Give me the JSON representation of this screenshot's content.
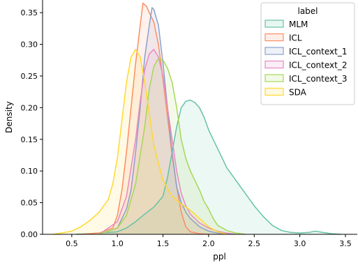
{
  "chart_data": {
    "type": "area",
    "title": "",
    "xlabel": "ppl",
    "ylabel": "Density",
    "xlim": [
      0.18,
      3.63
    ],
    "ylim": [
      0.0,
      0.37
    ],
    "xticks": [
      0.5,
      1.0,
      1.5,
      2.0,
      2.5,
      3.0,
      3.5
    ],
    "yticks": [
      0.0,
      0.05,
      0.1,
      0.15,
      0.2,
      0.25,
      0.3,
      0.35
    ],
    "xtick_labels": [
      "0.5",
      "1.0",
      "1.5",
      "2.0",
      "2.5",
      "3.0",
      "3.5"
    ],
    "ytick_labels": [
      "0.00",
      "0.05",
      "0.10",
      "0.15",
      "0.20",
      "0.25",
      "0.30",
      "0.35"
    ],
    "grid": false,
    "legend": {
      "title": "label",
      "placement": "top-right"
    },
    "series": [
      {
        "name": "MLM",
        "color": "#66c2a5",
        "x": [
          0.55,
          0.8,
          1.0,
          1.1,
          1.2,
          1.3,
          1.4,
          1.5,
          1.55,
          1.6,
          1.65,
          1.7,
          1.75,
          1.8,
          1.85,
          1.9,
          1.95,
          2.0,
          2.1,
          2.2,
          2.3,
          2.4,
          2.5,
          2.6,
          2.7,
          2.8,
          2.9,
          3.0,
          3.1,
          3.17,
          3.25,
          3.35,
          3.45
        ],
        "y": [
          0.0,
          0.002,
          0.004,
          0.01,
          0.02,
          0.032,
          0.043,
          0.06,
          0.09,
          0.13,
          0.17,
          0.2,
          0.21,
          0.212,
          0.208,
          0.2,
          0.185,
          0.165,
          0.135,
          0.105,
          0.085,
          0.065,
          0.045,
          0.028,
          0.014,
          0.006,
          0.003,
          0.002,
          0.003,
          0.005,
          0.003,
          0.001,
          0.0
        ]
      },
      {
        "name": "ICL",
        "color": "#fc8d62",
        "x": [
          0.6,
          0.8,
          0.95,
          1.0,
          1.05,
          1.1,
          1.15,
          1.2,
          1.25,
          1.28,
          1.32,
          1.35,
          1.4,
          1.45,
          1.5,
          1.55,
          1.6,
          1.65,
          1.7,
          1.75,
          1.8,
          1.9,
          2.0
        ],
        "y": [
          0.0,
          0.002,
          0.01,
          0.03,
          0.07,
          0.13,
          0.2,
          0.27,
          0.33,
          0.365,
          0.36,
          0.35,
          0.335,
          0.3,
          0.245,
          0.185,
          0.125,
          0.075,
          0.035,
          0.012,
          0.004,
          0.001,
          0.0
        ]
      },
      {
        "name": "ICL_context_1",
        "color": "#8da0cb",
        "x": [
          0.8,
          1.0,
          1.1,
          1.15,
          1.2,
          1.25,
          1.3,
          1.35,
          1.38,
          1.4,
          1.45,
          1.5,
          1.55,
          1.6,
          1.65,
          1.7,
          1.75,
          1.8,
          1.9,
          2.0,
          2.1,
          2.2
        ],
        "y": [
          0.0,
          0.01,
          0.04,
          0.07,
          0.13,
          0.2,
          0.28,
          0.33,
          0.358,
          0.355,
          0.33,
          0.27,
          0.2,
          0.13,
          0.075,
          0.05,
          0.035,
          0.025,
          0.012,
          0.005,
          0.002,
          0.0
        ]
      },
      {
        "name": "ICL_context_2",
        "color": "#e78ac3",
        "x": [
          0.8,
          1.0,
          1.1,
          1.2,
          1.25,
          1.3,
          1.35,
          1.4,
          1.45,
          1.5,
          1.55,
          1.6,
          1.65,
          1.7,
          1.75,
          1.8,
          1.9,
          2.0,
          2.1,
          2.2,
          2.3
        ],
        "y": [
          0.0,
          0.02,
          0.06,
          0.15,
          0.21,
          0.26,
          0.285,
          0.292,
          0.28,
          0.25,
          0.2,
          0.15,
          0.1,
          0.065,
          0.045,
          0.032,
          0.018,
          0.01,
          0.005,
          0.002,
          0.0
        ]
      },
      {
        "name": "ICL_context_3",
        "color": "#a6d854",
        "x": [
          0.8,
          1.0,
          1.1,
          1.2,
          1.3,
          1.35,
          1.4,
          1.45,
          1.5,
          1.55,
          1.6,
          1.65,
          1.7,
          1.75,
          1.8,
          1.85,
          1.9,
          1.95,
          2.0,
          2.05,
          2.1,
          2.2,
          2.3,
          2.4
        ],
        "y": [
          0.0,
          0.01,
          0.03,
          0.08,
          0.17,
          0.23,
          0.265,
          0.278,
          0.275,
          0.262,
          0.24,
          0.2,
          0.15,
          0.12,
          0.1,
          0.085,
          0.07,
          0.052,
          0.04,
          0.025,
          0.014,
          0.006,
          0.002,
          0.0
        ]
      },
      {
        "name": "SDA",
        "color": "#ffd92f",
        "x": [
          0.3,
          0.5,
          0.6,
          0.7,
          0.8,
          0.9,
          0.95,
          1.0,
          1.05,
          1.1,
          1.15,
          1.2,
          1.25,
          1.3,
          1.35,
          1.4,
          1.5,
          1.6,
          1.7,
          1.8,
          1.9,
          2.0,
          2.1,
          2.2
        ],
        "y": [
          0.0,
          0.005,
          0.012,
          0.022,
          0.035,
          0.055,
          0.08,
          0.12,
          0.18,
          0.24,
          0.28,
          0.292,
          0.28,
          0.24,
          0.19,
          0.14,
          0.085,
          0.06,
          0.048,
          0.038,
          0.025,
          0.012,
          0.004,
          0.0
        ]
      }
    ]
  }
}
